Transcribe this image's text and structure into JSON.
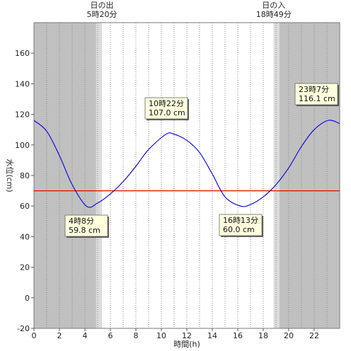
{
  "chart_data": {
    "type": "line",
    "xlabel": "時間(h)",
    "ylabel": "水位(cm)",
    "xlim": [
      0,
      24
    ],
    "ylim": [
      -20,
      180
    ],
    "x_ticks": [
      0,
      2,
      4,
      6,
      8,
      10,
      12,
      14,
      16,
      18,
      20,
      22
    ],
    "y_ticks": [
      -20,
      0,
      20,
      40,
      60,
      80,
      100,
      120,
      140,
      160
    ],
    "grid": "vertical dotted, hourly",
    "series": [
      {
        "color": "#0000dd",
        "x": [
          0,
          1,
          2,
          3,
          4.133,
          5,
          6,
          7,
          8,
          9,
          10.367,
          11,
          12,
          13,
          14,
          15,
          16.217,
          17,
          18,
          19,
          20,
          21,
          22,
          23.117,
          24
        ],
        "values": [
          116,
          109,
          93,
          74,
          59.8,
          62,
          68,
          76,
          86,
          97,
          107.0,
          107,
          103,
          95,
          81,
          66,
          60.0,
          61,
          66,
          74,
          85,
          99,
          110,
          116.1,
          114
        ]
      }
    ],
    "reference_line": {
      "y": 70,
      "color": "#ee0000"
    },
    "sunrise": {
      "label": "日の出",
      "time": "5時20分",
      "hour": 5.333
    },
    "sunset": {
      "label": "日の入",
      "time": "18時49分",
      "hour": 18.817
    },
    "annotations": [
      {
        "time": "4時8分",
        "value": "59.8 cm",
        "x": 4.133,
        "y": 59.8,
        "place": "below"
      },
      {
        "time": "10時22分",
        "value": "107.0 cm",
        "x": 10.367,
        "y": 107.0,
        "place": "above"
      },
      {
        "time": "16時13分",
        "value": "60.0 cm",
        "x": 16.217,
        "y": 60.0,
        "place": "below"
      },
      {
        "time": "23時7分",
        "value": "116.1 cm",
        "x": 23.117,
        "y": 116.1,
        "place": "above"
      }
    ],
    "colors": {
      "night": "#c0c0c0",
      "twilight": "#dcdcdc",
      "day": "#ffffff",
      "grid": "#888888",
      "callout_fill": "#ffffdd"
    }
  }
}
